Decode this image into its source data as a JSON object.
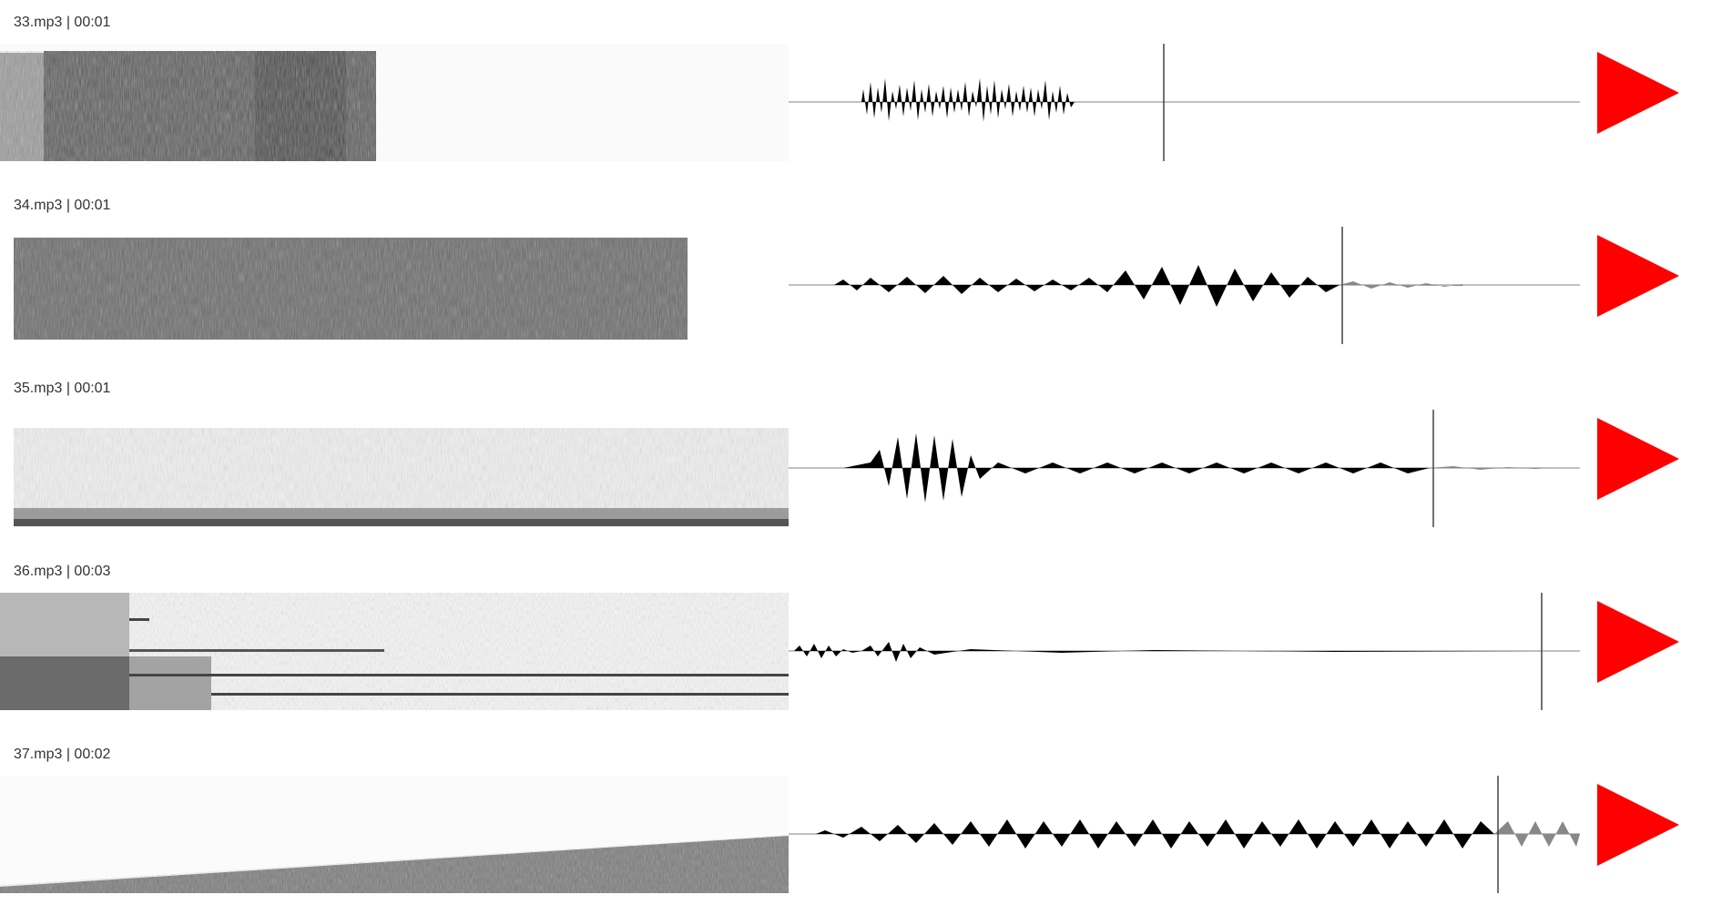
{
  "colors": {
    "play": "#ff0000",
    "waveform": "#000000",
    "waveform_unplayed": "#888888",
    "axis": "#9a9a9a",
    "cursor": "#444444"
  },
  "tracks": [
    {
      "title": "33.mp3 | 00:01",
      "progress": 0.47,
      "icon": "play-icon"
    },
    {
      "title": "34.mp3 | 00:01",
      "progress": 0.7,
      "icon": "play-icon"
    },
    {
      "title": "35.mp3 | 00:01",
      "progress": 0.81,
      "icon": "play-icon"
    },
    {
      "title": "36.mp3 | 00:03",
      "progress": 0.95,
      "icon": "play-icon"
    },
    {
      "title": "37.mp3 | 00:02",
      "progress": 0.87,
      "icon": "play-icon"
    }
  ]
}
